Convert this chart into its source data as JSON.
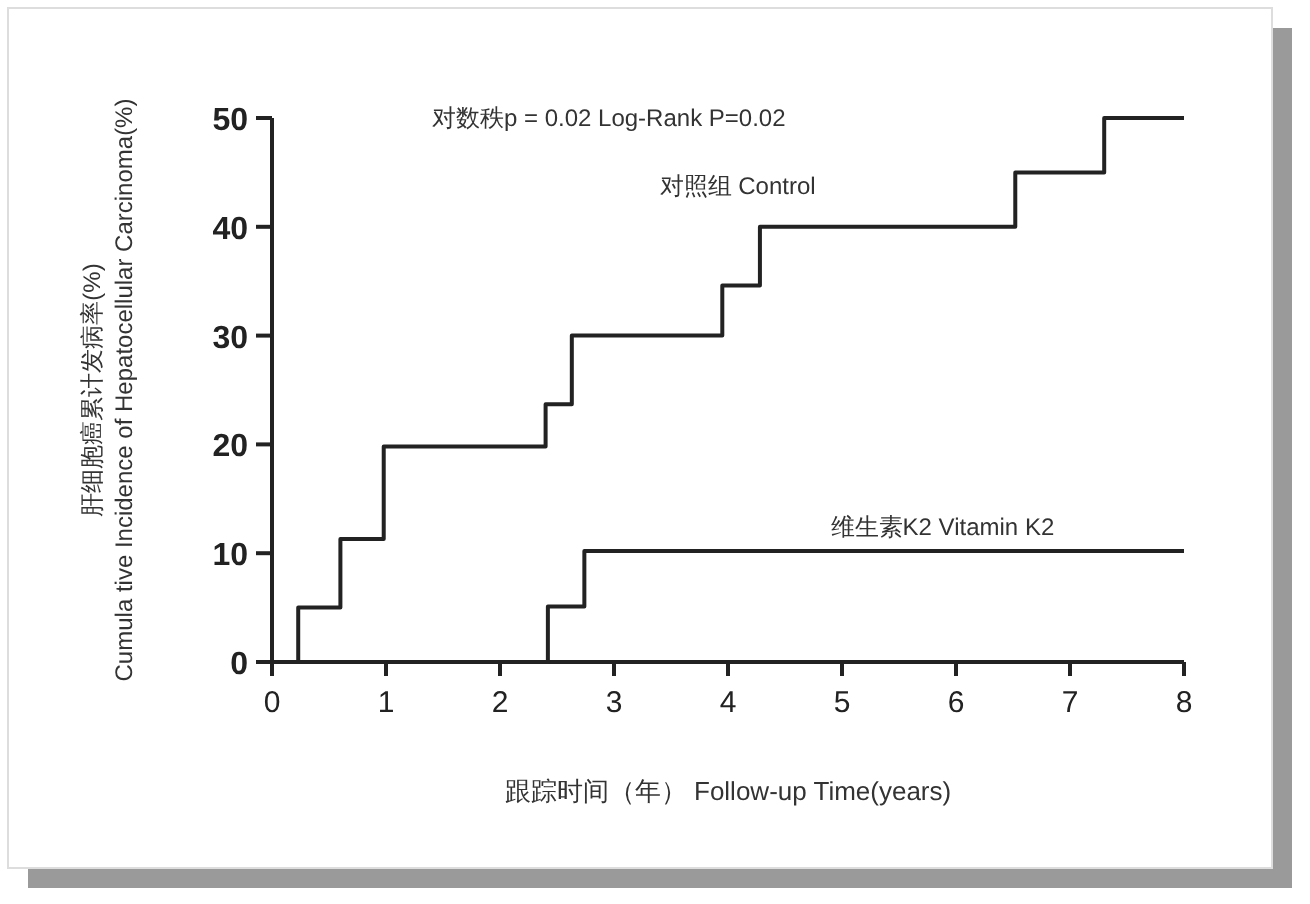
{
  "chart_data": {
    "type": "step",
    "annotations": [
      "对数秩p = 0.02  Log-Rank P=0.02"
    ],
    "xlabel": "跟踪时间（年） Follow-up Time(years)",
    "ylabel": "肝细胞癌累计发病率(%)\nCumula tive Incidence of Hepatocellular Carcinoma(%)",
    "series": [
      {
        "name": "对照组  Control",
        "color": "#222222",
        "x": [
          0,
          0.23,
          0.6,
          0.98,
          2.4,
          2.63,
          3.95,
          4.28,
          6.52,
          7.3,
          8
        ],
        "values": [
          0,
          5,
          11.3,
          19.8,
          23.7,
          30,
          34.6,
          40,
          45,
          50,
          50
        ]
      },
      {
        "name": "维生素K2  Vitamin K2",
        "color": "#222222",
        "x": [
          0,
          2.42,
          2.74,
          8
        ],
        "values": [
          0,
          5.1,
          10.2,
          10.2
        ]
      }
    ],
    "xlim": [
      0,
      8
    ],
    "xticks": [
      0,
      1,
      2,
      3,
      4,
      5,
      6,
      7,
      8
    ],
    "ylim": [
      0,
      50
    ],
    "yticks": [
      0,
      10,
      20,
      30,
      40,
      50
    ],
    "grid": false,
    "marker": "none",
    "line_style": "solid"
  }
}
